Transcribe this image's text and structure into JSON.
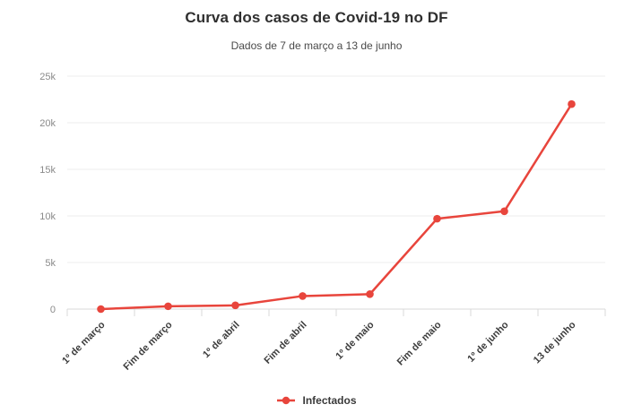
{
  "header": {
    "title": "Curva dos casos de Covid-19 no DF",
    "subtitle": "Dados de 7 de março a 13 de junho"
  },
  "legend": {
    "label": "Infectados"
  },
  "colors": {
    "line": "#e8453c",
    "grid": "#ededed",
    "axis": "#d9d9d9",
    "ytick_label": "#8a8a8a",
    "xtick_label": "#3d3d3d"
  },
  "chart_data": {
    "type": "line",
    "title": "Curva dos casos de Covid-19 no DF",
    "subtitle": "Dados de 7 de março a 13 de junho",
    "categories": [
      "1º de março",
      "Fim de março",
      "1º de abril",
      "Fim de abril",
      "1º de maio",
      "Fim de maio",
      "1º de junho",
      "13 de junho"
    ],
    "series": [
      {
        "name": "Infectados",
        "values": [
          0,
          300,
          400,
          1400,
          1600,
          9700,
          10500,
          22000
        ]
      }
    ],
    "ylim": [
      0,
      25000
    ],
    "yticks": [
      {
        "value": 0,
        "label": "0"
      },
      {
        "value": 5000,
        "label": "5k"
      },
      {
        "value": 10000,
        "label": "10k"
      },
      {
        "value": 15000,
        "label": "15k"
      },
      {
        "value": 20000,
        "label": "20k"
      },
      {
        "value": 25000,
        "label": "25k"
      }
    ],
    "grid": true,
    "legend_position": "bottom",
    "xlabel": "",
    "ylabel": ""
  }
}
